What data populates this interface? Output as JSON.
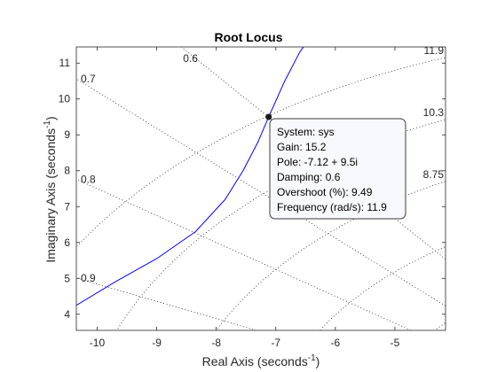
{
  "chart_data": {
    "type": "line",
    "title": "Root Locus",
    "xlabel": {
      "main": "Real Axis (seconds",
      "exp": "-1",
      "close": ")"
    },
    "ylabel": {
      "main": "Imaginary Axis (seconds",
      "exp": "-1",
      "close": ")"
    },
    "xlim": [
      -10.35,
      -4.15
    ],
    "ylim": [
      3.55,
      11.45
    ],
    "xticks": [
      -10,
      -9,
      -8,
      -7,
      -6,
      -5
    ],
    "yticks": [
      4,
      5,
      6,
      7,
      8,
      9,
      10,
      11
    ],
    "grid": "s-plane damping and frequency lines (dotted)",
    "series": [
      {
        "color": "#0000ff",
        "x": [
          -10.35,
          -9.7,
          -9.0,
          -8.35,
          -7.85,
          -7.55,
          -7.3,
          -7.12,
          -6.85,
          -6.6,
          -6.35
        ],
        "y": [
          4.25,
          4.9,
          5.55,
          6.3,
          7.2,
          8.0,
          8.8,
          9.5,
          10.5,
          11.3,
          11.9
        ]
      }
    ],
    "damping_labels": [
      "0.6",
      "0.7",
      "0.8",
      "0.9"
    ],
    "damping_values": [
      0.6,
      0.7,
      0.8,
      0.9
    ],
    "frequency_labels": [
      "11.9",
      "10.3",
      "8.75"
    ],
    "frequency_values": [
      11.9,
      10.3,
      8.75
    ],
    "extra_frequency_lines": [
      7.2,
      5.6
    ],
    "selected_point": {
      "x": -7.12,
      "y": 9.5,
      "lines": [
        "System: sys",
        "Gain: 15.2",
        "Pole: -7.12 + 9.5i",
        "Damping: 0.6",
        "Overshoot (%): 9.49",
        "Frequency (rad/s): 11.9"
      ]
    }
  }
}
